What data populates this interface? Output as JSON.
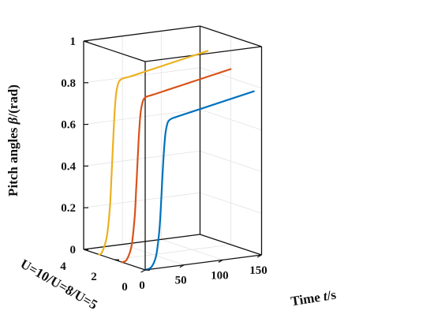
{
  "chart_data": {
    "type": "line",
    "projection": "3d",
    "title": "",
    "xlabel_prefix": "Time ",
    "xlabel_var": "t",
    "xlabel_suffix": "/s",
    "ylabel": "U=10/U=8/U=5",
    "zlabel_prefix": "Pitch angles ",
    "zlabel_var": "β",
    "zlabel_suffix": "/(rad)",
    "xlim": [
      0,
      150
    ],
    "ylim": [
      0,
      4
    ],
    "zlim": [
      0,
      1
    ],
    "x_ticks": [
      "0",
      "50",
      "100",
      "150"
    ],
    "y_ticks": [
      "0",
      "2",
      "4"
    ],
    "z_ticks": [
      "0",
      "0.2",
      "0.4",
      "0.6",
      "0.8",
      "1"
    ],
    "grid": true,
    "box": true,
    "series": [
      {
        "color": "#0072BD",
        "y": 0,
        "x": [
          0,
          8,
          14,
          18,
          20,
          22,
          24,
          26,
          28,
          30,
          34,
          40,
          60,
          80,
          100,
          120,
          140
        ],
        "z": [
          0,
          0.01,
          0.06,
          0.17,
          0.28,
          0.42,
          0.55,
          0.64,
          0.68,
          0.7,
          0.71,
          0.715,
          0.73,
          0.745,
          0.76,
          0.775,
          0.79
        ]
      },
      {
        "color": "#D95319",
        "y": 1.5,
        "x": [
          0,
          6,
          12,
          16,
          18,
          20,
          22,
          24,
          26,
          28,
          32,
          40,
          60,
          80,
          100,
          120,
          140
        ],
        "z": [
          0,
          0.01,
          0.07,
          0.2,
          0.33,
          0.48,
          0.62,
          0.71,
          0.75,
          0.77,
          0.78,
          0.785,
          0.8,
          0.815,
          0.83,
          0.845,
          0.86
        ]
      },
      {
        "color": "#EDB120",
        "y": 3,
        "x": [
          0,
          4,
          10,
          14,
          16,
          18,
          20,
          22,
          24,
          26,
          30,
          40,
          60,
          80,
          100,
          120,
          140
        ],
        "z": [
          0,
          0.01,
          0.08,
          0.22,
          0.36,
          0.52,
          0.67,
          0.76,
          0.8,
          0.82,
          0.83,
          0.835,
          0.85,
          0.865,
          0.88,
          0.895,
          0.91
        ]
      }
    ]
  }
}
